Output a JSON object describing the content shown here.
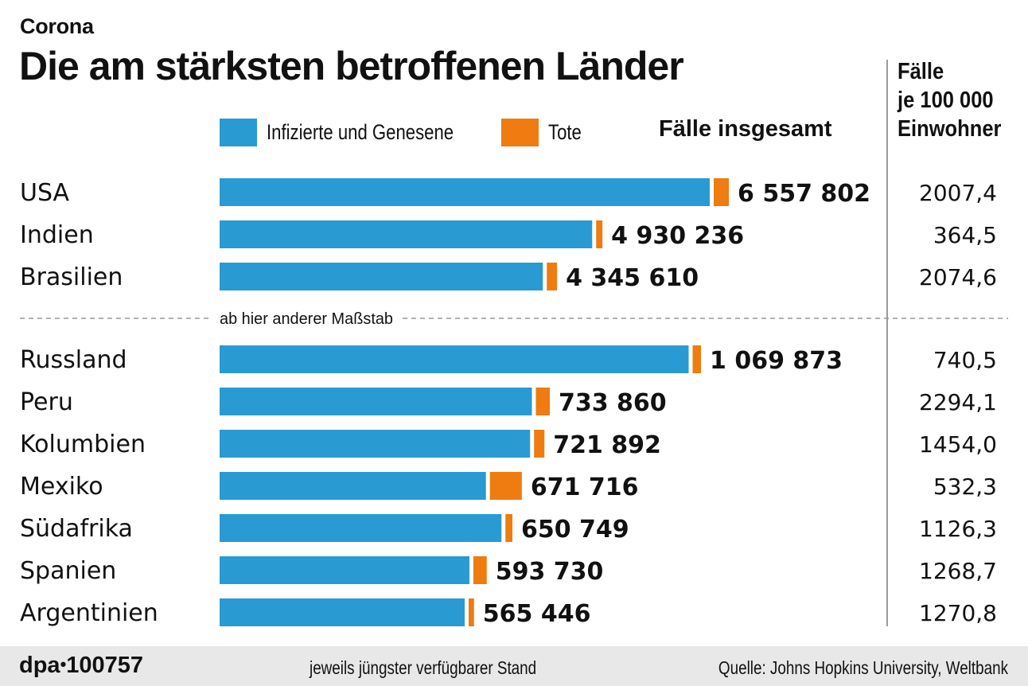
{
  "header": {
    "kicker": "Corona",
    "title": "Die am stärksten betroffenen Länder"
  },
  "columns": {
    "total_heading": "Fälle insgesamt",
    "per_capita_heading": [
      "Fälle",
      "je 100 000",
      "Einwohner"
    ]
  },
  "colors": {
    "infected": "#2a9ad2",
    "deaths": "#ee7c10",
    "separator": "#9a9a9a",
    "footer_bg": "#e8e8e8"
  },
  "footer": {
    "logo": "dpa",
    "logo_dot": "•",
    "id": "100757",
    "note": "jeweils jüngster verfügbarer Stand",
    "source": "Quelle: Johns Hopkins University, Weltbank"
  },
  "chart_data": {
    "type": "bar",
    "orientation": "horizontal",
    "stacked": true,
    "title": "Die am stärksten betroffenen Länder",
    "subtitle": "Corona",
    "legend": [
      {
        "name": "Infizierte und Genesene",
        "color": "#2a9ad2"
      },
      {
        "name": "Tote",
        "color": "#ee7c10"
      }
    ],
    "legend_position": "top",
    "scale_break_note": "ab hier anderer Maßstab",
    "groups": [
      {
        "scale_max": 6557802,
        "rows": [
          {
            "country": "USA",
            "total": 6557802,
            "total_label": "6 557 802",
            "deaths_est": 195000,
            "per_100k": "2007,4"
          },
          {
            "country": "Indien",
            "total": 4930236,
            "total_label": "4 930 236",
            "deaths_est": 81000,
            "per_100k": "364,5"
          },
          {
            "country": "Brasilien",
            "total": 4345610,
            "total_label": "4 345 610",
            "deaths_est": 132000,
            "per_100k": "2074,6"
          }
        ]
      },
      {
        "scale_max": 1069873,
        "rows": [
          {
            "country": "Russland",
            "total": 1069873,
            "total_label": "1 069 873",
            "deaths_est": 18600,
            "per_100k": "740,5"
          },
          {
            "country": "Peru",
            "total": 733860,
            "total_label": "733 860",
            "deaths_est": 31000,
            "per_100k": "2294,1"
          },
          {
            "country": "Kolumbien",
            "total": 721892,
            "total_label": "721 892",
            "deaths_est": 23000,
            "per_100k": "1454,0"
          },
          {
            "country": "Mexiko",
            "total": 671716,
            "total_label": "671 716",
            "deaths_est": 71000,
            "per_100k": "532,3"
          },
          {
            "country": "Südafrika",
            "total": 650749,
            "total_label": "650 749",
            "deaths_est": 15500,
            "per_100k": "1126,3"
          },
          {
            "country": "Spanien",
            "total": 593730,
            "total_label": "593 730",
            "deaths_est": 29700,
            "per_100k": "1268,7"
          },
          {
            "country": "Argentinien",
            "total": 565446,
            "total_label": "565 446",
            "deaths_est": 12000,
            "per_100k": "1270,8"
          }
        ]
      }
    ],
    "xlabel": "",
    "ylabel": "",
    "grid": false
  }
}
